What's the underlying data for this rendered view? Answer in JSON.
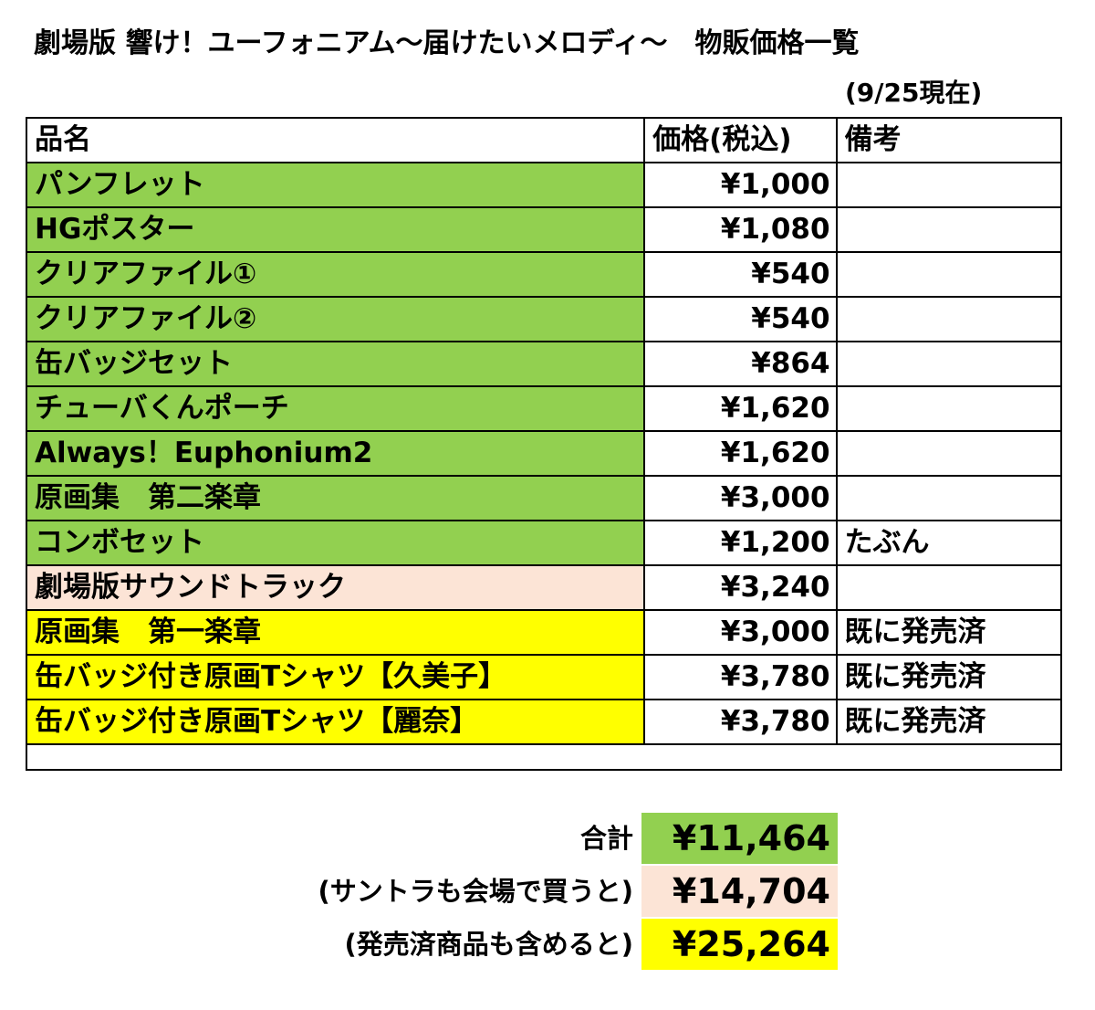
{
  "header": {
    "title": "劇場版 響け！ユーフォニアム〜届けたいメロディ〜　物販価格一覧",
    "as_of": "(9/25現在)"
  },
  "table": {
    "columns": [
      "品名",
      "価格(税込)",
      "備考"
    ],
    "rows": [
      {
        "name": "パンフレット",
        "price": "¥1,000",
        "note": "",
        "color": "#92d050"
      },
      {
        "name": "HGポスター",
        "price": "¥1,080",
        "note": "",
        "color": "#92d050"
      },
      {
        "name": "クリアファイル①",
        "price": "¥540",
        "note": "",
        "color": "#92d050"
      },
      {
        "name": "クリアファイル②",
        "price": "¥540",
        "note": "",
        "color": "#92d050"
      },
      {
        "name": "缶バッジセット",
        "price": "¥864",
        "note": "",
        "color": "#92d050"
      },
      {
        "name": "チューバくんポーチ",
        "price": "¥1,620",
        "note": "",
        "color": "#92d050"
      },
      {
        "name": "Always！Euphonium2",
        "price": "¥1,620",
        "note": "",
        "color": "#92d050"
      },
      {
        "name": "原画集　第二楽章",
        "price": "¥3,000",
        "note": "",
        "color": "#92d050"
      },
      {
        "name": "コンボセット",
        "price": "¥1,200",
        "note": "たぶん",
        "color": "#92d050"
      },
      {
        "name": "劇場版サウンドトラック",
        "price": "¥3,240",
        "note": "",
        "color": "#fce4d6"
      },
      {
        "name": "原画集　第一楽章",
        "price": "¥3,000",
        "note": "既に発売済",
        "color": "#ffff00"
      },
      {
        "name": "缶バッジ付き原画Tシャツ【久美子】",
        "price": "¥3,780",
        "note": "既に発売済",
        "color": "#ffff00"
      },
      {
        "name": "缶バッジ付き原画Tシャツ【麗奈】",
        "price": "¥3,780",
        "note": "既に発売済",
        "color": "#ffff00"
      }
    ]
  },
  "totals": [
    {
      "label": "合計",
      "value": "¥11,464",
      "color": "#92d050"
    },
    {
      "label": "(サントラも会場で買うと)",
      "value": "¥14,704",
      "color": "#fce4d6"
    },
    {
      "label": "(発売済商品も含めると)",
      "value": "¥25,264",
      "color": "#ffff00"
    }
  ]
}
